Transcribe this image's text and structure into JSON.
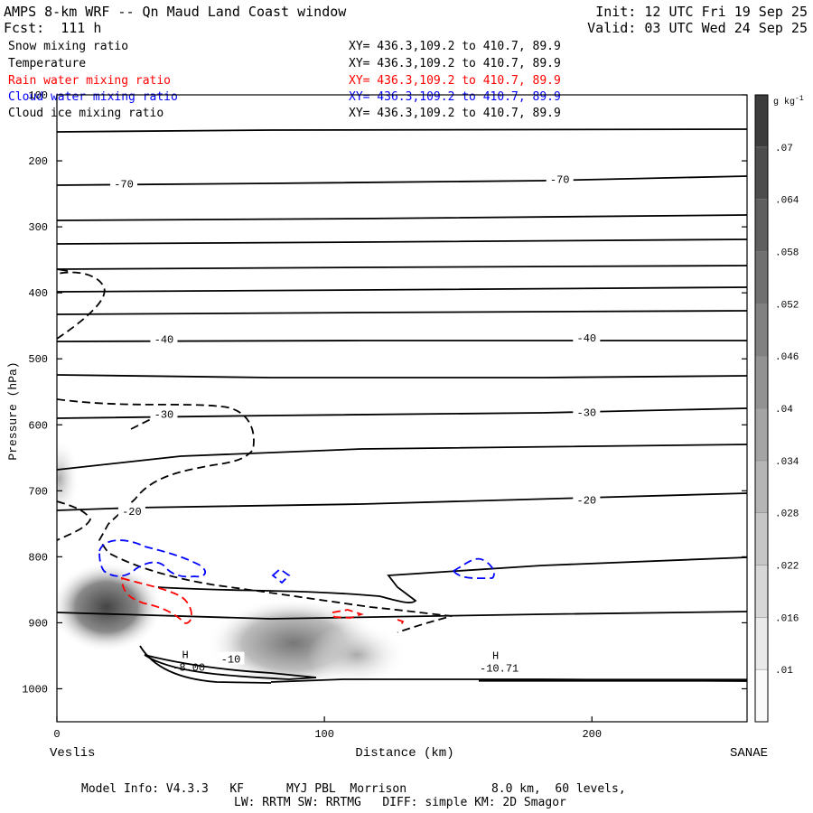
{
  "header": {
    "title": "AMPS 8-km WRF -- Qn Maud Land Coast window",
    "forecast": "Fcst:  111 h",
    "init": "Init: 12 UTC Fri 19 Sep 25",
    "valid": "Valid: 03 UTC Wed 24 Sep 25"
  },
  "legend": [
    {
      "label": "Snow mixing ratio",
      "xy": "XY= 436.3,109.2 to 410.7, 89.9",
      "color": "#000000"
    },
    {
      "label": "Temperature",
      "xy": "XY= 436.3,109.2 to 410.7, 89.9",
      "color": "#000000"
    },
    {
      "label": "Rain water mixing ratio",
      "xy": "XY= 436.3,109.2 to 410.7, 89.9",
      "color": "#ff0000"
    },
    {
      "label": "Cloud water mixing ratio",
      "xy": "XY= 436.3,109.2 to 410.7, 89.9",
      "color": "#0000ff"
    },
    {
      "label": "Cloud ice mixing ratio",
      "xy": "XY= 436.3,109.2 to 410.7, 89.9",
      "color": "#000000"
    }
  ],
  "chart_data": {
    "type": "contour cross-section",
    "ylabel": "Pressure (hPa)",
    "xlabel": "Distance (km)",
    "ylim": [
      1050,
      100
    ],
    "xlim": [
      0,
      258
    ],
    "yticks": [
      100,
      200,
      300,
      400,
      500,
      600,
      700,
      800,
      900,
      1000
    ],
    "xticks": [
      0,
      100,
      200
    ],
    "x_start_label": "Veslis",
    "x_end_label": "SANAE",
    "colorbar": {
      "unit": "g kg",
      "unit_sup": "-1",
      "ticks": [
        ".01",
        ".016",
        ".022",
        ".028",
        ".034",
        ".04",
        ".046",
        ".052",
        ".058",
        ".064",
        ".07"
      ]
    },
    "temperature_labels": [
      {
        "text": "-70",
        "x": 25,
        "p": 235
      },
      {
        "text": "-70",
        "x": 188,
        "p": 228
      },
      {
        "text": "-40",
        "x": 40,
        "p": 470
      },
      {
        "text": "-40",
        "x": 198,
        "p": 468
      },
      {
        "text": "-30",
        "x": 40,
        "p": 584
      },
      {
        "text": "-30",
        "x": 198,
        "p": 581
      },
      {
        "text": "-20",
        "x": 28,
        "p": 731
      },
      {
        "text": "-20",
        "x": 198,
        "p": 714
      },
      {
        "text": "-10",
        "x": 65,
        "p": 955
      }
    ],
    "high_labels": [
      {
        "mark": "H",
        "value": "-8.00",
        "x": 48,
        "p": 962
      },
      {
        "mark": "H",
        "value": "-10.71",
        "x": 164,
        "p": 963
      }
    ]
  },
  "footer": {
    "line1": "Model Info: V4.3.3   KF      MYJ PBL  Morrison            8.0 km,  60 levels,",
    "line2": "LW: RRTM SW: RRTMG   DIFF: simple KM: 2D Smagor"
  }
}
